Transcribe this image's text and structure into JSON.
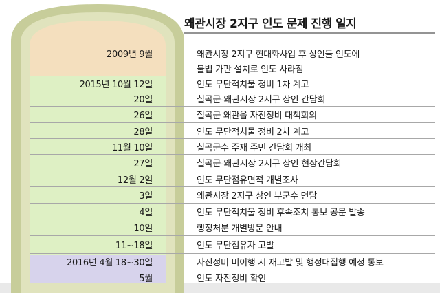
{
  "title": "왜관시장 2지구 인도 문제 진행 일지",
  "colors": {
    "band_2009": "#f4dfbe",
    "band_2015": "#def0c4",
    "band_2016": "#d7d3ec",
    "arch_outer": "#c7cd9a",
    "arch_inner": "#e0e3bd",
    "ground": "#e9e9e9"
  },
  "timeline": [
    {
      "date": "2009년 9월",
      "event": "왜관시장 2지구 현대화사업 후 상인들 인도에",
      "event2": "불법 가판 설치로 인도 사라짐"
    },
    {
      "date": "2015년 10월 12일",
      "event": "인도 무단적치물 정비 1차 계고"
    },
    {
      "date": "20일",
      "event": "칠곡군-왜관시장 2지구 상인 간담회"
    },
    {
      "date": "26일",
      "event": "칠곡군 왜관읍 자진정비 대책회의"
    },
    {
      "date": "28일",
      "event": "인도 무단적치물 정비 2차 계고"
    },
    {
      "date": "11월 10일",
      "event": "칠곡군수 주재 주민 간담회 개최"
    },
    {
      "date": "27일",
      "event": "칠곡군-왜관시장 2지구 상인 현장간담회"
    },
    {
      "date": "12월 2일",
      "event": "인도 무단점유면적 개별조사"
    },
    {
      "date": "3일",
      "event": "왜관시장 2지구 상인 부군수 면담"
    },
    {
      "date": "4일",
      "event": "인도 무단적치물 정비 후속조치 통보 공문 발송"
    },
    {
      "date": "10일",
      "event": "행정처분 개별방문 안내"
    },
    {
      "date": "11~18일",
      "event": "인도 무단점유자 고발"
    },
    {
      "date": "2016년 4월 18~30일",
      "event": "자진정비 미이행 시 재고발 및 행정대집행 예정 통보"
    },
    {
      "date": "5월",
      "event": "인도 자진정비 확인"
    }
  ]
}
